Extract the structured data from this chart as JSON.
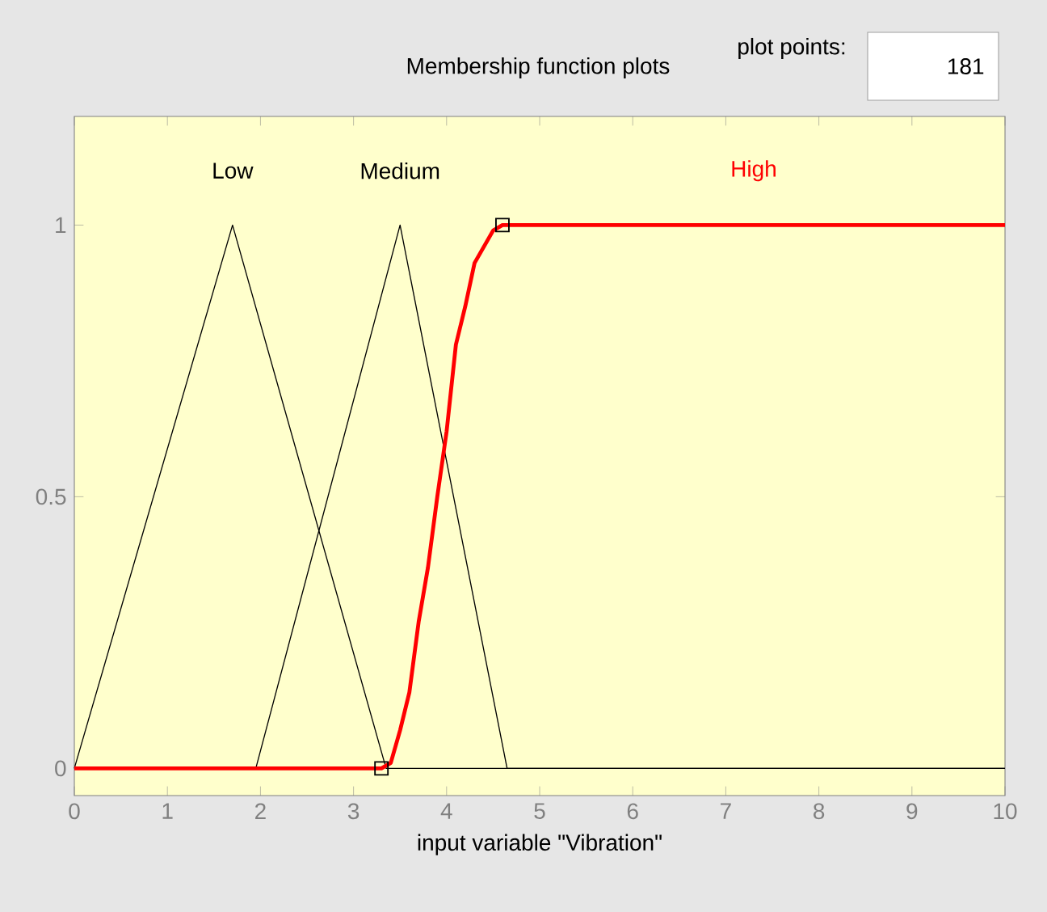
{
  "chart_data": {
    "type": "line",
    "title": "Membership function plots",
    "xlabel": "input variable \"Vibration\"",
    "annotations": [
      "plot points:",
      "181"
    ],
    "xlim": [
      0,
      10
    ],
    "ylim": [
      -0.05,
      1.2
    ],
    "xticks": [
      0,
      1,
      2,
      3,
      4,
      5,
      6,
      7,
      8,
      9,
      10
    ],
    "yticks": [
      0,
      0.5,
      1
    ],
    "grid": false,
    "marker": "none",
    "line_style": "solid",
    "series": [
      {
        "name": "Low",
        "color": "#000000",
        "x": [
          0,
          1.7,
          3.35,
          10
        ],
        "values": [
          0,
          1,
          0,
          0
        ]
      },
      {
        "name": "Medium",
        "color": "#000000",
        "x": [
          0,
          1.95,
          3.5,
          4.65,
          10
        ],
        "values": [
          0,
          0,
          1,
          0,
          0
        ]
      },
      {
        "name": "High",
        "color": "#ff0000",
        "x": [
          0,
          3.3,
          3.4,
          3.5,
          3.6,
          3.7,
          3.8,
          3.9,
          4.0,
          4.1,
          4.2,
          4.3,
          4.4,
          4.5,
          4.6,
          10
        ],
        "values": [
          0,
          0,
          0.01,
          0.07,
          0.14,
          0.27,
          0.37,
          0.5,
          0.62,
          0.78,
          0.85,
          0.93,
          0.96,
          0.99,
          1,
          1
        ]
      },
      {
        "type": "scatter",
        "marker": "square",
        "color": "#000000",
        "x": [
          3.3,
          4.6
        ],
        "values": [
          0,
          1
        ]
      }
    ]
  }
}
